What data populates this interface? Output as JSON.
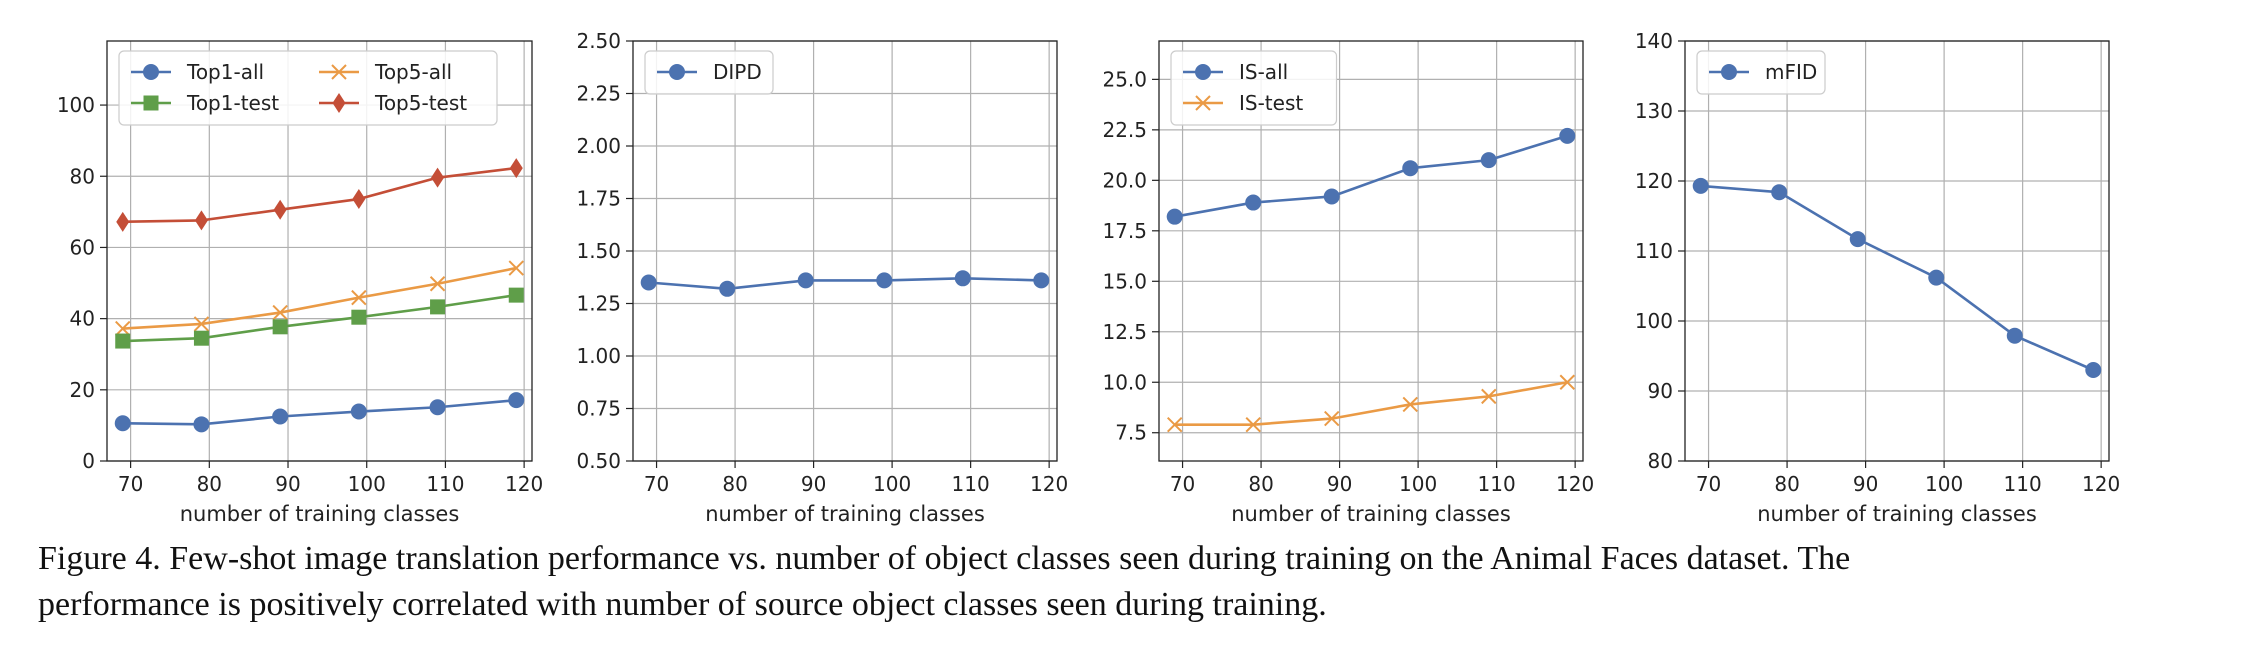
{
  "chart_data": [
    {
      "type": "line",
      "xlabel": "number of training classes",
      "ylabel": "",
      "xlim": [
        67,
        121
      ],
      "ylim": [
        0,
        118
      ],
      "xticks": [
        70,
        80,
        90,
        100,
        110,
        120
      ],
      "yticks": [
        0,
        20,
        40,
        60,
        80,
        100
      ],
      "ytick_labels": [
        "0",
        "20",
        "40",
        "60",
        "80",
        "100"
      ],
      "grid": true,
      "legend_position": "top-left",
      "legend_columns": 2,
      "x": [
        69,
        79,
        89,
        99,
        109,
        119
      ],
      "series": [
        {
          "name": "Top1-all",
          "marker": "circle",
          "color": "#4c72b0",
          "values": [
            10.6,
            10.3,
            12.5,
            13.9,
            15.1,
            17.1
          ]
        },
        {
          "name": "Top5-all",
          "marker": "x",
          "color": "#ea9a45",
          "values": [
            37.2,
            38.5,
            41.7,
            45.9,
            49.8,
            54.2
          ]
        },
        {
          "name": "Top1-test",
          "marker": "square",
          "color": "#5f9e49",
          "values": [
            33.7,
            34.5,
            37.7,
            40.4,
            43.3,
            46.6
          ]
        },
        {
          "name": "Top5-test",
          "marker": "diamond",
          "color": "#c44e37",
          "values": [
            67.2,
            67.6,
            70.6,
            73.6,
            79.6,
            82.3
          ]
        }
      ]
    },
    {
      "type": "line",
      "xlabel": "number of training classes",
      "ylabel": "",
      "xlim": [
        67,
        121
      ],
      "ylim": [
        0.5,
        2.5
      ],
      "xticks": [
        70,
        80,
        90,
        100,
        110,
        120
      ],
      "yticks": [
        0.5,
        0.75,
        1.0,
        1.25,
        1.5,
        1.75,
        2.0,
        2.25,
        2.5
      ],
      "ytick_labels": [
        "0.50",
        "0.75",
        "1.00",
        "1.25",
        "1.50",
        "1.75",
        "2.00",
        "2.25",
        "2.50"
      ],
      "grid": true,
      "legend_position": "top-left",
      "legend_columns": 1,
      "x": [
        69,
        79,
        89,
        99,
        109,
        119
      ],
      "series": [
        {
          "name": "DIPD",
          "marker": "circle",
          "color": "#4c72b0",
          "values": [
            1.35,
            1.32,
            1.36,
            1.36,
            1.37,
            1.36
          ]
        }
      ]
    },
    {
      "type": "line",
      "xlabel": "number of training classes",
      "ylabel": "",
      "xlim": [
        67,
        121
      ],
      "ylim": [
        6.1,
        26.9
      ],
      "xticks": [
        70,
        80,
        90,
        100,
        110,
        120
      ],
      "yticks": [
        7.5,
        10.0,
        12.5,
        15.0,
        17.5,
        20.0,
        22.5,
        25.0
      ],
      "ytick_labels": [
        "7.5",
        "10.0",
        "12.5",
        "15.0",
        "17.5",
        "20.0",
        "22.5",
        "25.0"
      ],
      "grid": true,
      "legend_position": "top-left",
      "legend_columns": 1,
      "x": [
        69,
        79,
        89,
        99,
        109,
        119
      ],
      "series": [
        {
          "name": "IS-all",
          "marker": "circle",
          "color": "#4c72b0",
          "values": [
            18.2,
            18.9,
            19.2,
            20.6,
            21.0,
            22.2
          ]
        },
        {
          "name": "IS-test",
          "marker": "x",
          "color": "#ea9a45",
          "values": [
            7.9,
            7.9,
            8.2,
            8.9,
            9.3,
            10.0
          ]
        }
      ]
    },
    {
      "type": "line",
      "xlabel": "number of training classes",
      "ylabel": "",
      "xlim": [
        67,
        121
      ],
      "ylim": [
        80,
        140
      ],
      "xticks": [
        70,
        80,
        90,
        100,
        110,
        120
      ],
      "yticks": [
        80,
        90,
        100,
        110,
        120,
        130,
        140
      ],
      "ytick_labels": [
        "80",
        "90",
        "100",
        "110",
        "120",
        "130",
        "140"
      ],
      "grid": true,
      "legend_position": "top-left",
      "legend_columns": 1,
      "x": [
        69,
        79,
        89,
        99,
        109,
        119
      ],
      "series": [
        {
          "name": "mFID",
          "marker": "circle",
          "color": "#4c72b0",
          "values": [
            119.3,
            118.4,
            111.7,
            106.2,
            97.9,
            93.0
          ]
        }
      ]
    }
  ],
  "caption": {
    "line1": "Figure 4. Few-shot image translation performance vs.  number of object classes seen during training on the Animal Faces dataset.  The",
    "line2": "performance is positively correlated with number of source object classes seen during training."
  }
}
